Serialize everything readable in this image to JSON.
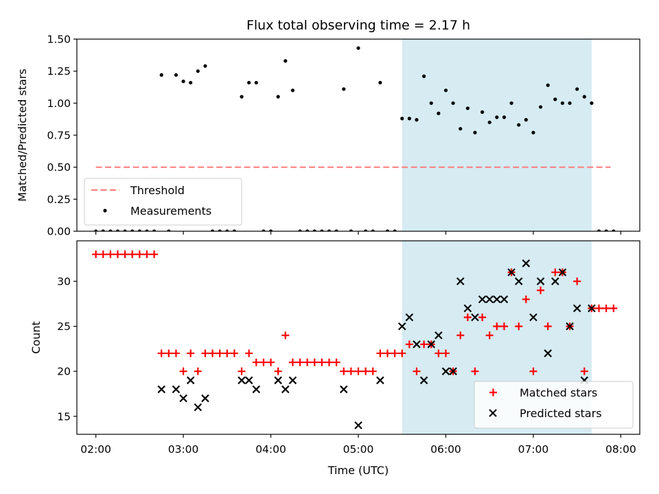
{
  "chart_data": [
    {
      "type": "scatter",
      "title": "Flux total observing time = 2.17 h",
      "xlabel": "",
      "ylabel": "Matched/Predicted stars",
      "xlim": [
        "01:47",
        "08:13"
      ],
      "ylim": [
        0,
        1.5
      ],
      "y_ticks": [
        "0.00",
        "0.25",
        "0.50",
        "0.75",
        "1.00",
        "1.25",
        "1.50"
      ],
      "shaded_interval": [
        "05:30",
        "07:40"
      ],
      "shade_color": "#add8e6",
      "legend": {
        "placement": "lower-left",
        "entries": [
          "Threshold",
          "Measurements"
        ]
      },
      "series": [
        {
          "name": "Threshold",
          "style": "dashed-line",
          "color": "#ff7f7f",
          "x": [
            "02:00",
            "07:53"
          ],
          "y": [
            0.5,
            0.5
          ]
        },
        {
          "name": "Measurements",
          "style": "dot",
          "color": "#000000",
          "x": [
            "02:00",
            "02:05",
            "02:10",
            "02:15",
            "02:20",
            "02:25",
            "02:30",
            "02:35",
            "02:40",
            "02:45",
            "02:50",
            "02:55",
            "03:00",
            "03:05",
            "03:10",
            "03:15",
            "03:20",
            "03:25",
            "03:30",
            "03:35",
            "03:40",
            "03:45",
            "03:50",
            "03:55",
            "04:00",
            "04:05",
            "04:10",
            "04:15",
            "04:20",
            "04:25",
            "04:30",
            "04:35",
            "04:40",
            "04:45",
            "04:50",
            "04:55",
            "05:00",
            "05:05",
            "05:10",
            "05:15",
            "05:20",
            "05:25",
            "05:30",
            "05:35",
            "05:40",
            "05:45",
            "05:50",
            "05:55",
            "06:00",
            "06:05",
            "06:10",
            "06:15",
            "06:20",
            "06:25",
            "06:30",
            "06:35",
            "06:40",
            "06:45",
            "06:50",
            "06:55",
            "07:00",
            "07:05",
            "07:10",
            "07:15",
            "07:20",
            "07:25",
            "07:30",
            "07:35",
            "07:40",
            "07:45",
            "07:50",
            "07:55"
          ],
          "y": [
            0,
            0,
            0,
            0,
            0,
            0,
            0,
            0,
            0,
            1.22,
            0,
            1.22,
            1.17,
            1.16,
            1.25,
            1.29,
            0,
            0,
            0,
            0,
            1.05,
            1.16,
            1.16,
            0,
            0,
            1.05,
            1.33,
            1.1,
            0,
            0,
            0,
            0,
            0,
            0,
            1.11,
            0,
            1.43,
            0,
            0,
            1.16,
            0,
            0,
            0.88,
            0.88,
            0.87,
            1.21,
            1.0,
            0.92,
            1.1,
            1.0,
            0.8,
            0.96,
            0.77,
            0.93,
            0.85,
            0.89,
            0.89,
            1.0,
            0.83,
            0.87,
            0.77,
            0.97,
            1.14,
            1.03,
            1.0,
            1.0,
            1.11,
            1.05,
            1.0,
            0,
            0,
            0
          ]
        }
      ]
    },
    {
      "type": "scatter",
      "xlabel": "Time (UTC)",
      "ylabel": "Count",
      "xlim": [
        "01:47",
        "08:13"
      ],
      "ylim": [
        13,
        34.5
      ],
      "x_ticks": [
        "02:00",
        "03:00",
        "04:00",
        "05:00",
        "06:00",
        "07:00",
        "08:00"
      ],
      "y_ticks": [
        "15",
        "20",
        "25",
        "30"
      ],
      "shaded_interval": [
        "05:30",
        "07:40"
      ],
      "shade_color": "#add8e6",
      "legend": {
        "placement": "lower-right",
        "entries": [
          "Matched stars",
          "Predicted stars"
        ]
      },
      "series": [
        {
          "name": "Matched stars",
          "marker": "plus",
          "color": "#ff0000",
          "x": [
            "02:00",
            "02:05",
            "02:10",
            "02:15",
            "02:20",
            "02:25",
            "02:30",
            "02:35",
            "02:40",
            "02:45",
            "02:50",
            "02:55",
            "03:00",
            "03:05",
            "03:10",
            "03:15",
            "03:20",
            "03:25",
            "03:30",
            "03:35",
            "03:40",
            "03:45",
            "03:50",
            "03:55",
            "04:00",
            "04:05",
            "04:10",
            "04:15",
            "04:20",
            "04:25",
            "04:30",
            "04:35",
            "04:40",
            "04:45",
            "04:50",
            "04:55",
            "05:00",
            "05:05",
            "05:10",
            "05:15",
            "05:20",
            "05:25",
            "05:30",
            "05:35",
            "05:40",
            "05:45",
            "05:50",
            "05:55",
            "06:00",
            "06:05",
            "06:10",
            "06:15",
            "06:20",
            "06:25",
            "06:30",
            "06:35",
            "06:40",
            "06:45",
            "06:50",
            "06:55",
            "07:00",
            "07:05",
            "07:10",
            "07:15",
            "07:20",
            "07:25",
            "07:30",
            "07:35",
            "07:40",
            "07:45",
            "07:50",
            "07:55"
          ],
          "y": [
            33,
            33,
            33,
            33,
            33,
            33,
            33,
            33,
            33,
            22,
            22,
            22,
            20,
            22,
            20,
            22,
            22,
            22,
            22,
            22,
            20,
            22,
            21,
            21,
            21,
            20,
            24,
            21,
            21,
            21,
            21,
            21,
            21,
            21,
            20,
            20,
            20,
            20,
            20,
            22,
            22,
            22,
            22,
            23,
            20,
            23,
            23,
            22,
            22,
            20,
            24,
            26,
            20,
            26,
            24,
            25,
            25,
            31,
            25,
            28,
            20,
            29,
            25,
            31,
            31,
            25,
            30,
            20,
            27,
            27,
            27,
            27
          ]
        },
        {
          "name": "Predicted stars",
          "marker": "x",
          "color": "#000000",
          "x": [
            "02:45",
            "02:55",
            "03:00",
            "03:05",
            "03:10",
            "03:15",
            "03:40",
            "03:45",
            "03:50",
            "04:05",
            "04:10",
            "04:15",
            "04:50",
            "05:00",
            "05:15",
            "05:30",
            "05:35",
            "05:40",
            "05:45",
            "05:50",
            "05:55",
            "06:00",
            "06:05",
            "06:10",
            "06:15",
            "06:20",
            "06:25",
            "06:30",
            "06:35",
            "06:40",
            "06:45",
            "06:50",
            "06:55",
            "07:00",
            "07:05",
            "07:10",
            "07:15",
            "07:20",
            "07:25",
            "07:30",
            "07:35",
            "07:40"
          ],
          "y": [
            18,
            18,
            17,
            19,
            16,
            17,
            19,
            19,
            18,
            19,
            18,
            19,
            18,
            14,
            19,
            25,
            26,
            23,
            19,
            23,
            24,
            20,
            20,
            30,
            27,
            26,
            28,
            28,
            28,
            28,
            31,
            30,
            32,
            26,
            30,
            22,
            30,
            31,
            25,
            27,
            19,
            27
          ]
        }
      ]
    }
  ]
}
